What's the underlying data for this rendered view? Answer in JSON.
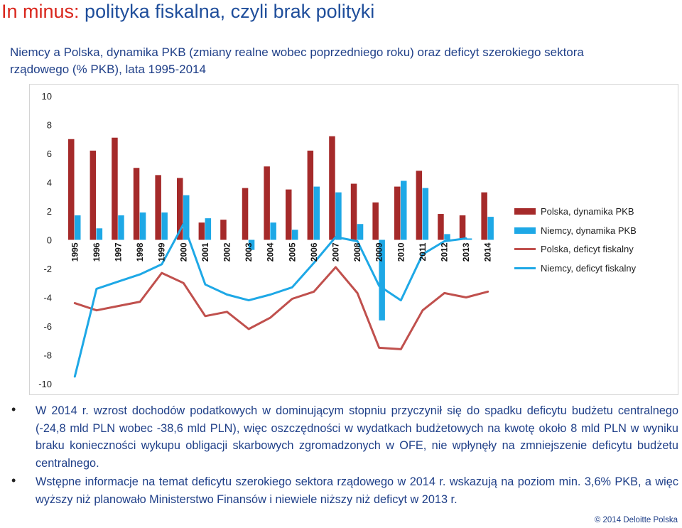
{
  "slide": {
    "title_lead": "In minus:",
    "title_rest": " polityka fiskalna, czyli brak polityki",
    "subtitle": "Niemcy a Polska, dynamika PKB (zmiany realne wobec poprzedniego roku) oraz deficyt szerokiego sektora rządowego (% PKB), lata 1995-2014",
    "bullets": [
      "W 2014 r. wzrost dochodów podatkowych w dominującym stopniu przyczynił się do spadku deficytu budżetu centralnego (-24,8 mld PLN wobec -38,6 mld PLN), więc oszczędności w wydatkach budżetowych na kwotę około 8 mld PLN w wyniku braku konieczności wykupu obligacji skarbowych zgromadzonych w OFE, nie wpłynęły na zmniejszenie deficytu budżetu centralnego.",
      "Wstępne informacje na temat deficytu szerokiego sektora rządowego w 2014 r. wskazują na poziom min. 3,6% PKB, a więc wyższy niż planowało Ministerstwo Finansów i niewiele niższy niż deficyt w 2013 r."
    ],
    "copyright": "© 2014 Deloitte Polska"
  },
  "chart_data": {
    "type": "bar",
    "categories": [
      "1995",
      "1996",
      "1997",
      "1998",
      "1999",
      "2000",
      "2001",
      "2002",
      "2003",
      "2004",
      "2005",
      "2006",
      "2007",
      "2008",
      "2009",
      "2010",
      "2011",
      "2012",
      "2013",
      "2014"
    ],
    "ylim": [
      -10,
      10
    ],
    "yticks": [
      -10,
      -8,
      -6,
      -4,
      -2,
      0,
      2,
      4,
      6,
      8,
      10
    ],
    "grid": false,
    "legend_position": "right",
    "series": [
      {
        "name": "Polska, dynamika PKB",
        "kind": "bar",
        "color": "#a52a2a",
        "values": [
          7.0,
          6.2,
          7.1,
          5.0,
          4.5,
          4.3,
          1.2,
          1.4,
          3.6,
          5.1,
          3.5,
          6.2,
          7.2,
          3.9,
          2.6,
          3.7,
          4.8,
          1.8,
          1.7,
          3.3
        ]
      },
      {
        "name": "Niemcy, dynamika PKB",
        "kind": "bar",
        "color": "#1ea8e6",
        "values": [
          1.7,
          0.8,
          1.7,
          1.9,
          1.9,
          3.1,
          1.5,
          0.0,
          -0.7,
          1.2,
          0.7,
          3.7,
          3.3,
          1.1,
          -5.6,
          4.1,
          3.6,
          0.4,
          0.1,
          1.6
        ]
      },
      {
        "name": "Polska, deficyt fiskalny",
        "kind": "line",
        "color": "#c0504d",
        "values": [
          -4.4,
          -4.9,
          -4.6,
          -4.3,
          -2.3,
          -3.0,
          -5.3,
          -5.0,
          -6.2,
          -5.4,
          -4.1,
          -3.6,
          -1.9,
          -3.7,
          -7.5,
          -7.6,
          -4.9,
          -3.7,
          -4.0,
          -3.6
        ]
      },
      {
        "name": "Niemcy, deficyt fiskalny",
        "kind": "line",
        "color": "#1ea8e6",
        "values": [
          -9.5,
          -3.4,
          -2.9,
          -2.4,
          -1.7,
          1.1,
          -3.1,
          -3.8,
          -4.2,
          -3.8,
          -3.3,
          -1.6,
          0.2,
          -0.1,
          -3.2,
          -4.2,
          -1.0,
          -0.1,
          0.1,
          null
        ]
      }
    ]
  }
}
